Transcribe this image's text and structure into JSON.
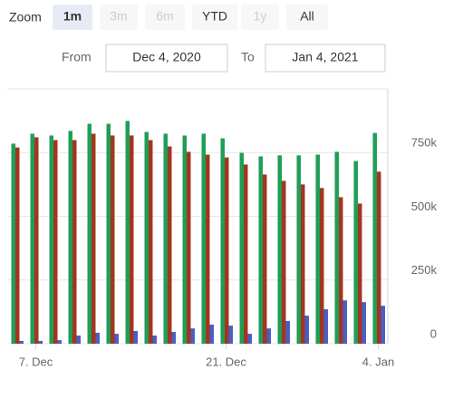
{
  "range_selector": {
    "label": "Zoom",
    "buttons": [
      {
        "text": "1m",
        "state": "selected"
      },
      {
        "text": "3m",
        "state": "disabled"
      },
      {
        "text": "6m",
        "state": "disabled"
      },
      {
        "text": "YTD",
        "state": "normal"
      },
      {
        "text": "1y",
        "state": "disabled"
      },
      {
        "text": "All",
        "state": "normal"
      }
    ]
  },
  "date_inputs": {
    "from_label": "From",
    "from": "Dec 4, 2020",
    "to_label": "To",
    "to": "Jan 4, 2021"
  },
  "chart_data": {
    "type": "bar",
    "categories": [
      null,
      "7. Dec",
      null,
      null,
      null,
      null,
      null,
      null,
      null,
      null,
      null,
      "21. Dec",
      null,
      null,
      null,
      null,
      null,
      null,
      null,
      "4. Jan"
    ],
    "series": [
      {
        "color": "#1f9e57",
        "values": [
          785000,
          824000,
          817000,
          835000,
          863000,
          863000,
          874000,
          831000,
          824000,
          817000,
          824000,
          806000,
          749000,
          735000,
          739000,
          739000,
          742000,
          753000,
          717000,
          827000
        ]
      },
      {
        "color": "#a3361f",
        "values": [
          770000,
          810000,
          799000,
          799000,
          824000,
          817000,
          817000,
          799000,
          774000,
          753000,
          742000,
          731000,
          703000,
          664000,
          639000,
          625000,
          611000,
          575000,
          550000,
          675000
        ]
      },
      {
        "color": "#4a5ec4",
        "values": [
          11000,
          11000,
          14000,
          32000,
          43000,
          39000,
          50000,
          32000,
          46000,
          60000,
          75000,
          71000,
          39000,
          60000,
          89000,
          110000,
          135000,
          170000,
          163000,
          149000
        ]
      }
    ],
    "ylim": [
      0,
      1000000
    ],
    "yticks": [
      0,
      {
        "value": 250000,
        "label": "250k"
      },
      {
        "value": 500000,
        "label": "500k"
      },
      {
        "value": 750000,
        "label": "750k"
      }
    ],
    "grid": true
  }
}
